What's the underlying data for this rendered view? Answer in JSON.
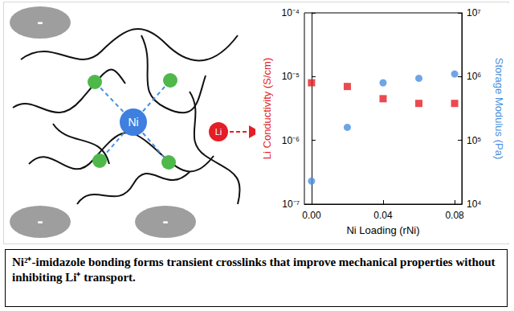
{
  "chart_data": {
    "type": "scatter",
    "xlabel": "Ni Loading (rNi)",
    "ylabel": "Li Conductivity (S/cm)",
    "y2label": "Storage Modulus (Pa)",
    "x": [
      0.0,
      0.02,
      0.04,
      0.06,
      0.08
    ],
    "series": [
      {
        "color": "#e41e26",
        "marker": "square",
        "values": [
          8e-06,
          7e-06,
          4.5e-06,
          3.8e-06,
          3.8e-06
        ]
      },
      {
        "color": "#4a8fe0",
        "marker": "circle",
        "axis": "y2",
        "values": [
          23000,
          160000,
          800000,
          940000,
          1100000
        ]
      }
    ],
    "xlim": [
      -0.004,
      0.084
    ],
    "xticks": [
      {
        "value": 0,
        "label": "0.00"
      },
      {
        "value": 0.04,
        "label": "0.04"
      },
      {
        "value": 0.08,
        "label": "0.08"
      }
    ],
    "ylim": [
      1e-07,
      0.0001
    ],
    "yticks": [
      {
        "value": 1e-07,
        "label": "10⁻⁷"
      },
      {
        "value": 1e-06,
        "label": "10⁻⁶"
      },
      {
        "value": 1e-05,
        "label": "10⁻⁵"
      },
      {
        "value": 0.0001,
        "label": "10⁻⁴"
      }
    ],
    "y2lim": [
      10000,
      10000000
    ],
    "y2ticks": [
      {
        "value": 10000,
        "label": "10⁴"
      },
      {
        "value": 100000,
        "label": "10⁵"
      },
      {
        "value": 1000000,
        "label": "10⁶"
      },
      {
        "value": 10000000,
        "label": "10⁷"
      }
    ],
    "log": "y",
    "grid": false
  },
  "diagram": {
    "anions": [
      {
        "label": "-"
      },
      {
        "label": "-"
      },
      {
        "label": "-"
      }
    ],
    "metal": {
      "label": "Ni"
    },
    "ion": {
      "label": "Li"
    }
  },
  "caption": "Ni²⁺-imidazole bonding forms transient crosslinks that improve mechanical properties without inhibiting Li⁺ transport."
}
